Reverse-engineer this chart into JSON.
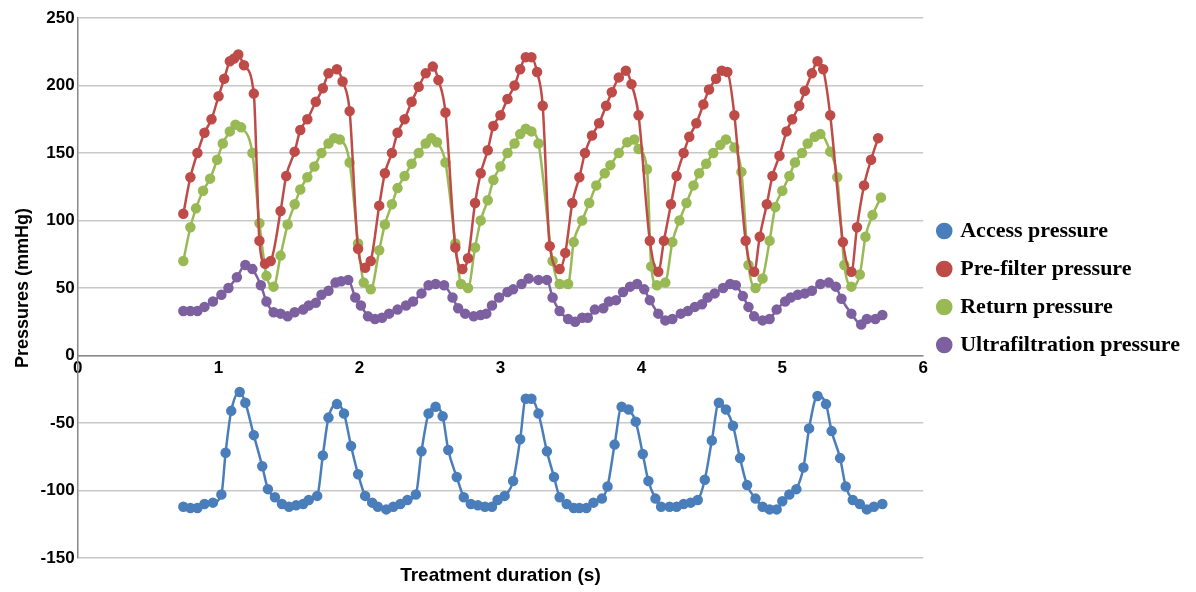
{
  "chart_data": {
    "type": "line",
    "xlabel": "Treatment duration (s)",
    "ylabel": "Pressures (mmHg)",
    "xlim": [
      0,
      6
    ],
    "xticks": [
      0,
      1,
      2,
      3,
      4,
      5,
      6
    ],
    "ylim": [
      -150,
      250
    ],
    "yticks": [
      -150,
      -100,
      -50,
      0,
      50,
      100,
      150,
      200,
      250
    ],
    "grid": "y",
    "legend": "right",
    "marker": "circle",
    "line_style": "solid",
    "series": [
      {
        "name": "Access pressure",
        "color": "#4a7ebb",
        "x": [
          0.75,
          0.8,
          0.85,
          0.9,
          0.96,
          1.02,
          1.05,
          1.09,
          1.15,
          1.19,
          1.25,
          1.31,
          1.35,
          1.4,
          1.45,
          1.5,
          1.55,
          1.6,
          1.64,
          1.7,
          1.74,
          1.78,
          1.84,
          1.89,
          1.94,
          1.99,
          2.04,
          2.09,
          2.13,
          2.19,
          2.24,
          2.29,
          2.34,
          2.4,
          2.44,
          2.49,
          2.54,
          2.59,
          2.63,
          2.69,
          2.74,
          2.79,
          2.84,
          2.89,
          2.94,
          2.98,
          3.03,
          3.09,
          3.14,
          3.18,
          3.22,
          3.27,
          3.33,
          3.38,
          3.42,
          3.47,
          3.52,
          3.56,
          3.61,
          3.66,
          3.72,
          3.76,
          3.81,
          3.86,
          3.91,
          3.96,
          4.01,
          4.05,
          4.1,
          4.14,
          4.2,
          4.25,
          4.3,
          4.35,
          4.4,
          4.45,
          4.5,
          4.55,
          4.6,
          4.65,
          4.7,
          4.75,
          4.81,
          4.86,
          4.91,
          4.96,
          5.0,
          5.05,
          5.1,
          5.15,
          5.19,
          5.25,
          5.31,
          5.35,
          5.41,
          5.45,
          5.5,
          5.55,
          5.6,
          5.65,
          5.71
        ],
        "values": [
          -112,
          -113,
          -113,
          -110,
          -109,
          -103,
          -72,
          -41,
          -27,
          -35,
          -59,
          -82,
          -99,
          -105,
          -110,
          -112,
          -111,
          -110,
          -107,
          -104,
          -74,
          -46,
          -36,
          -43,
          -67,
          -88,
          -104,
          -109,
          -112,
          -114,
          -112,
          -110,
          -107,
          -103,
          -71,
          -43,
          -38,
          -45,
          -70,
          -90,
          -105,
          -110,
          -111,
          -112,
          -112,
          -107,
          -104,
          -93,
          -62,
          -32,
          -32,
          -43,
          -71,
          -90,
          -105,
          -110,
          -113,
          -113,
          -113,
          -109,
          -106,
          -97,
          -66,
          -38,
          -40,
          -49,
          -73,
          -93,
          -106,
          -112,
          -112,
          -112,
          -110,
          -109,
          -107,
          -92,
          -63,
          -35,
          -40,
          -52,
          -76,
          -96,
          -106,
          -112,
          -114,
          -114,
          -108,
          -103,
          -99,
          -83,
          -54,
          -30,
          -36,
          -56,
          -76,
          -97,
          -107,
          -110,
          -114,
          -112,
          -110
        ]
      },
      {
        "name": "Pre-filter pressure",
        "color": "#be4b48",
        "x": [
          0.75,
          0.8,
          0.85,
          0.9,
          0.95,
          1.0,
          1.04,
          1.08,
          1.11,
          1.14,
          1.18,
          1.25,
          1.29,
          1.33,
          1.37,
          1.44,
          1.48,
          1.54,
          1.58,
          1.63,
          1.69,
          1.74,
          1.78,
          1.84,
          1.88,
          1.93,
          1.99,
          2.04,
          2.08,
          2.14,
          2.18,
          2.23,
          2.27,
          2.32,
          2.37,
          2.42,
          2.47,
          2.52,
          2.56,
          2.61,
          2.68,
          2.73,
          2.77,
          2.82,
          2.86,
          2.91,
          2.95,
          3.0,
          3.05,
          3.1,
          3.14,
          3.18,
          3.22,
          3.26,
          3.3,
          3.35,
          3.42,
          3.46,
          3.51,
          3.56,
          3.6,
          3.65,
          3.7,
          3.75,
          3.79,
          3.84,
          3.89,
          3.93,
          3.98,
          4.06,
          4.12,
          4.16,
          4.21,
          4.25,
          4.3,
          4.34,
          4.39,
          4.44,
          4.48,
          4.53,
          4.57,
          4.61,
          4.66,
          4.74,
          4.8,
          4.84,
          4.89,
          4.93,
          4.98,
          5.03,
          5.07,
          5.12,
          5.16,
          5.21,
          5.25,
          5.29,
          5.34,
          5.43,
          5.49,
          5.53,
          5.58,
          5.63,
          5.68
        ],
        "values": [
          105,
          132,
          150,
          165,
          175,
          192,
          205,
          218,
          220,
          223,
          215,
          194,
          85,
          68,
          70,
          107,
          133,
          151,
          167,
          175,
          188,
          198,
          209,
          212,
          203,
          181,
          79,
          65,
          70,
          111,
          135,
          150,
          165,
          175,
          188,
          199,
          209,
          214,
          204,
          180,
          80,
          64,
          72,
          113,
          135,
          152,
          170,
          178,
          190,
          200,
          212,
          221,
          221,
          210,
          185,
          81,
          64,
          76,
          113,
          132,
          150,
          163,
          172,
          185,
          195,
          206,
          211,
          201,
          178,
          85,
          62,
          85,
          112,
          133,
          150,
          162,
          172,
          186,
          197,
          205,
          211,
          210,
          178,
          85,
          62,
          88,
          112,
          133,
          148,
          166,
          175,
          185,
          196,
          209,
          218,
          212,
          178,
          84,
          62,
          95,
          126,
          145,
          161
        ]
      },
      {
        "name": "Return pressure",
        "color": "#98b954",
        "x": [
          0.75,
          0.8,
          0.84,
          0.89,
          0.94,
          0.99,
          1.03,
          1.08,
          1.12,
          1.16,
          1.24,
          1.29,
          1.34,
          1.39,
          1.44,
          1.49,
          1.54,
          1.58,
          1.63,
          1.68,
          1.73,
          1.78,
          1.82,
          1.86,
          1.93,
          1.99,
          2.03,
          2.08,
          2.14,
          2.18,
          2.23,
          2.27,
          2.32,
          2.37,
          2.42,
          2.47,
          2.51,
          2.55,
          2.61,
          2.68,
          2.72,
          2.77,
          2.82,
          2.86,
          2.91,
          2.95,
          3.0,
          3.05,
          3.1,
          3.14,
          3.18,
          3.22,
          3.27,
          3.37,
          3.42,
          3.48,
          3.52,
          3.58,
          3.63,
          3.68,
          3.74,
          3.78,
          3.84,
          3.9,
          3.95,
          3.98,
          4.04,
          4.07,
          4.11,
          4.17,
          4.22,
          4.27,
          4.32,
          4.37,
          4.41,
          4.46,
          4.51,
          4.56,
          4.6,
          4.66,
          4.71,
          4.76,
          4.81,
          4.86,
          4.91,
          4.95,
          5.0,
          5.05,
          5.09,
          5.14,
          5.18,
          5.23,
          5.27,
          5.34,
          5.39,
          5.44,
          5.49,
          5.55,
          5.59,
          5.64,
          5.7
        ],
        "values": [
          70,
          95,
          109,
          122,
          131,
          145,
          157,
          166,
          171,
          169,
          150,
          98,
          59,
          51,
          74,
          97,
          112,
          123,
          132,
          140,
          150,
          157,
          161,
          160,
          143,
          83,
          54,
          49,
          78,
          97,
          112,
          124,
          133,
          142,
          150,
          157,
          161,
          158,
          143,
          83,
          53,
          50,
          80,
          100,
          115,
          130,
          140,
          150,
          157,
          164,
          168,
          166,
          157,
          70,
          53,
          53,
          84,
          100,
          113,
          126,
          135,
          141,
          150,
          158,
          160,
          153,
          138,
          66,
          52,
          54,
          84,
          100,
          113,
          126,
          135,
          142,
          150,
          156,
          160,
          154,
          136,
          67,
          50,
          57,
          85,
          110,
          122,
          133,
          143,
          150,
          157,
          162,
          164,
          151,
          132,
          67,
          51,
          60,
          88,
          104,
          117
        ]
      },
      {
        "name": "Ultrafiltration pressure",
        "color": "#7d60a0",
        "x": [
          0.75,
          0.8,
          0.85,
          0.9,
          0.96,
          1.02,
          1.07,
          1.13,
          1.19,
          1.24,
          1.3,
          1.34,
          1.39,
          1.44,
          1.49,
          1.54,
          1.6,
          1.64,
          1.69,
          1.73,
          1.78,
          1.83,
          1.87,
          1.92,
          1.97,
          2.01,
          2.06,
          2.11,
          2.16,
          2.21,
          2.27,
          2.33,
          2.38,
          2.44,
          2.49,
          2.54,
          2.6,
          2.66,
          2.7,
          2.75,
          2.81,
          2.86,
          2.9,
          2.94,
          2.99,
          3.05,
          3.09,
          3.15,
          3.2,
          3.27,
          3.33,
          3.37,
          3.42,
          3.48,
          3.53,
          3.58,
          3.62,
          3.67,
          3.73,
          3.77,
          3.82,
          3.87,
          3.92,
          3.97,
          4.02,
          4.06,
          4.12,
          4.17,
          4.22,
          4.28,
          4.33,
          4.38,
          4.43,
          4.47,
          4.52,
          4.58,
          4.63,
          4.67,
          4.72,
          4.76,
          4.8,
          4.86,
          4.91,
          4.96,
          5.02,
          5.06,
          5.11,
          5.16,
          5.21,
          5.27,
          5.33,
          5.38,
          5.42,
          5.49,
          5.56,
          5.6,
          5.66,
          5.71
        ],
        "values": [
          33,
          33,
          33,
          36,
          40,
          45,
          50,
          58,
          67,
          64,
          52,
          40,
          32,
          31,
          29,
          32,
          34,
          37,
          39,
          45,
          48,
          54,
          55,
          56,
          43,
          37,
          29,
          27,
          28,
          31,
          34,
          37,
          40,
          46,
          52,
          53,
          52,
          43,
          35,
          31,
          29,
          30,
          31,
          37,
          43,
          47,
          49,
          53,
          57,
          56,
          56,
          43,
          33,
          27,
          25,
          28,
          28,
          34,
          35,
          40,
          41,
          47,
          51,
          53,
          49,
          41,
          31,
          26,
          27,
          31,
          33,
          36,
          38,
          43,
          46,
          50,
          53,
          52,
          44,
          36,
          29,
          26,
          27,
          34,
          40,
          43,
          45,
          46,
          48,
          53,
          54,
          51,
          42,
          31,
          23,
          27,
          27,
          30
        ]
      }
    ]
  }
}
